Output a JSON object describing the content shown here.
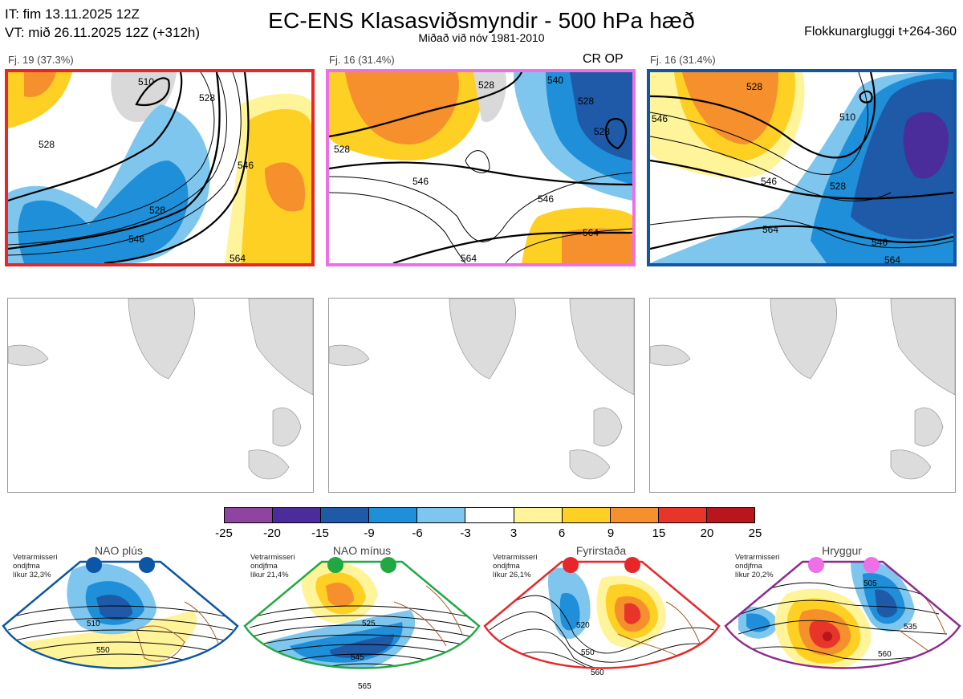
{
  "header": {
    "init": "IT: fim 13.11.2025 12Z",
    "valid": "VT: mið 26.11.2025 12Z  (+312h)",
    "title": "EC-ENS Klasasviðsmyndir - 500 hPa hæð",
    "subtitle": "Miðað við nóv 1981-2010",
    "window": "Flokkunargluggi t+264-360"
  },
  "panels": [
    {
      "label": "Fj. 19 (37.3%)",
      "border": "#e8262a",
      "contours": [
        "510",
        "528",
        "528",
        "528",
        "546",
        "546",
        "564"
      ]
    },
    {
      "label": "Fj. 16 (31.4%)",
      "border": "#ee6fe6",
      "tag": "CR OP",
      "contours": [
        "528",
        "540",
        "528",
        "528",
        "528",
        "546",
        "546",
        "564",
        "564"
      ]
    },
    {
      "label": "Fj. 16 (31.4%)",
      "border": "#1257a3",
      "contours": [
        "528",
        "510",
        "546",
        "546",
        "528",
        "564",
        "546",
        "564"
      ]
    }
  ],
  "colorbar": {
    "ticks": [
      "-25",
      "-20",
      "-15",
      "-9",
      "-6",
      "-3",
      "3",
      "6",
      "9",
      "15",
      "20",
      "25"
    ],
    "colors": [
      "#8e44a0",
      "#4a2d9a",
      "#1e5aa8",
      "#1e8fd8",
      "#7fc6ee",
      "#ffffff",
      "#fff49a",
      "#fdd023",
      "#f5902c",
      "#e8352a",
      "#b8151c"
    ]
  },
  "regimes": [
    {
      "name": "NAO plús",
      "note": [
        "Vetrarmisseri",
        "ondjfma",
        "líkur 32,3%"
      ],
      "color": "#0b56a5",
      "contours": [
        "510",
        "550"
      ]
    },
    {
      "name": "NAO mínus",
      "note": [
        "Vetrarmisseri",
        "ondjfma",
        "líkur 21,4%"
      ],
      "color": "#22a843",
      "contours": [
        "525",
        "545",
        "565"
      ]
    },
    {
      "name": "Fyrirstaða",
      "note": [
        "Vetrarmisseri",
        "ondjfma",
        "líkur 26,1%"
      ],
      "color": "#e8262a",
      "contours": [
        "520",
        "550",
        "560"
      ]
    },
    {
      "name": "Hryggur",
      "note": [
        "Vetrarmisseri",
        "ondjfma",
        "líkur 20,2%"
      ],
      "color": "#ee6fe6",
      "contours": [
        "505",
        "535",
        "560"
      ]
    }
  ]
}
